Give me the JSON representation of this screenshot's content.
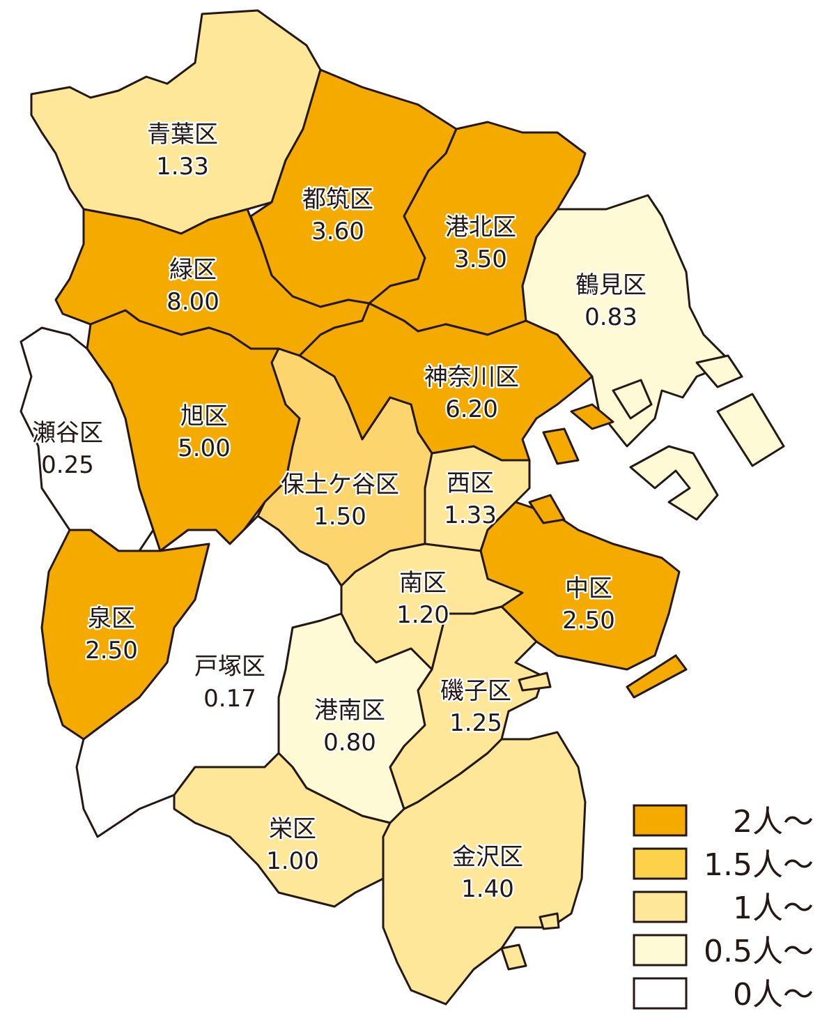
{
  "map": {
    "wards": [
      {
        "name": "青葉区",
        "value": "1.33",
        "color": "#FFE79A"
      },
      {
        "name": "都筑区",
        "value": "3.60",
        "color": "#F5AA00"
      },
      {
        "name": "港北区",
        "value": "3.50",
        "color": "#F5AA00"
      },
      {
        "name": "鶴見区",
        "value": "0.83",
        "color": "#FFFAD6"
      },
      {
        "name": "緑区",
        "value": "8.00",
        "color": "#F5AA00"
      },
      {
        "name": "旭区",
        "value": "5.00",
        "color": "#F5AA00"
      },
      {
        "name": "瀬谷区",
        "value": "0.25",
        "color": "#FFFFFF"
      },
      {
        "name": "神奈川区",
        "value": "6.20",
        "color": "#F5AA00"
      },
      {
        "name": "保土ケ谷区",
        "value": "1.50",
        "color": "#FDD56E"
      },
      {
        "name": "西区",
        "value": "1.33",
        "color": "#FFE79A"
      },
      {
        "name": "中区",
        "value": "2.50",
        "color": "#F5AA00"
      },
      {
        "name": "南区",
        "value": "1.20",
        "color": "#FFE79A"
      },
      {
        "name": "泉区",
        "value": "2.50",
        "color": "#F5AA00"
      },
      {
        "name": "戸塚区",
        "value": "0.17",
        "color": "#FFFFFF"
      },
      {
        "name": "港南区",
        "value": "0.80",
        "color": "#FFFAD6"
      },
      {
        "name": "磯子区",
        "value": "1.25",
        "color": "#FFE79A"
      },
      {
        "name": "栄区",
        "value": "1.00",
        "color": "#FFE79A"
      },
      {
        "name": "金沢区",
        "value": "1.40",
        "color": "#FFE79A"
      }
    ]
  },
  "legend": [
    {
      "label": "2人～",
      "color": "#F5AA00"
    },
    {
      "label": "1.5人～",
      "color": "#FDD24A"
    },
    {
      "label": "1人～",
      "color": "#FFE79A"
    },
    {
      "label": "0.5人～",
      "color": "#FFFAD6"
    },
    {
      "label": "0人～",
      "color": "#FFFFFF"
    }
  ]
}
